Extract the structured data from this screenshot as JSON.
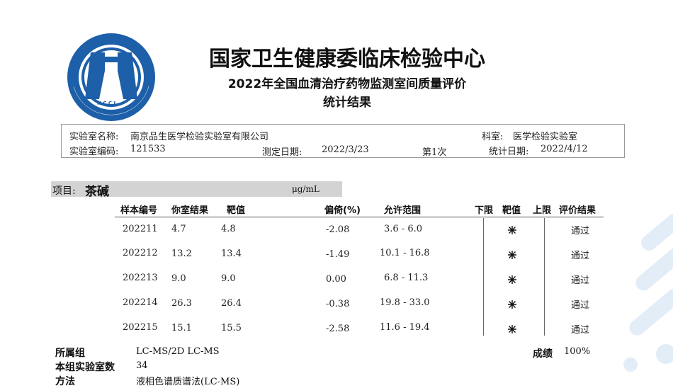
{
  "header": {
    "org_title": "国家卫生健康委临床检验中心",
    "report_title": "2022年全国血清治疗药物监测室间质量评价",
    "report_subtitle": "统计结果",
    "logo_text": "National Center for Clinical Laboratories"
  },
  "info": {
    "lab_name_label": "实验室名称:",
    "lab_name": "南京品生医学检验实验室有限公司",
    "dept_label": "科室:",
    "dept": "医学检验实验室",
    "lab_code_label": "实验室编码:",
    "lab_code": "121533",
    "test_date_label": "测定日期:",
    "test_date": "2022/3/23",
    "round": "第1次",
    "stat_date_label": "统计日期:",
    "stat_date": "2022/4/12"
  },
  "item": {
    "label": "项目:",
    "name": "茶碱",
    "unit": "μg/mL"
  },
  "table": {
    "headers": {
      "sample": "样本编号",
      "result": "你室结果",
      "target": "靶值",
      "bias": "偏倚(%)",
      "range": "允许范围",
      "lower": "下限",
      "target_mark": "靶值",
      "upper": "上限",
      "eval": "评价结果"
    },
    "rows": [
      {
        "sample": "202211",
        "result": "4.7",
        "target": "4.8",
        "bias": "-2.08",
        "range": "3.6 - 6.0",
        "eval": "通过"
      },
      {
        "sample": "202212",
        "result": "13.2",
        "target": "13.4",
        "bias": "-1.49",
        "range": "10.1 - 16.8",
        "eval": "通过"
      },
      {
        "sample": "202213",
        "result": "9.0",
        "target": "9.0",
        "bias": "0.00",
        "range": "6.8 - 11.3",
        "eval": "通过"
      },
      {
        "sample": "202214",
        "result": "26.3",
        "target": "26.4",
        "bias": "-0.38",
        "range": "19.8 - 33.0",
        "eval": "通过"
      },
      {
        "sample": "202215",
        "result": "15.1",
        "target": "15.5",
        "bias": "-2.58",
        "range": "11.6 - 19.4",
        "eval": "通过"
      }
    ]
  },
  "footer": {
    "group_label": "所属组",
    "group": "LC-MS/2D LC-MS",
    "score_label": "成绩",
    "score": "100%",
    "lab_count_label": "本组实验室数",
    "lab_count": "34",
    "method_label": "方法",
    "method": "液相色谱质谱法(LC-MS)"
  },
  "colors": {
    "logo_blue": "#1d5fa8",
    "item_bar": "#d3d3d3",
    "deco": "#dfeaf6"
  }
}
